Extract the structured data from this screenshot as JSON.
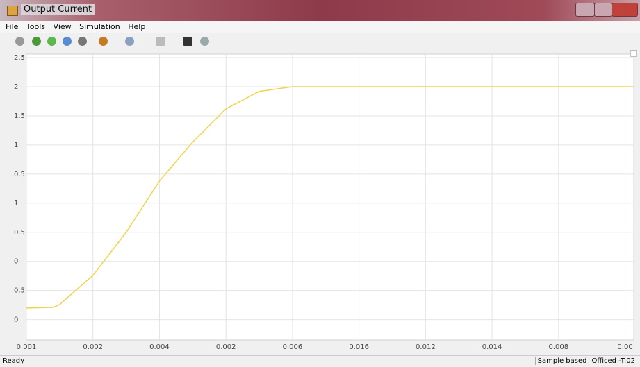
{
  "window": {
    "title": "Output Current",
    "menu": [
      "File",
      "Tools",
      "View",
      "Simulation",
      "Help"
    ],
    "status": {
      "left": "Ready",
      "right": [
        "Sample based",
        "Officed -T:02"
      ]
    }
  },
  "chart_data": {
    "type": "line",
    "x": [
      0,
      0.0004,
      0.0005,
      0.001,
      0.0015,
      0.002,
      0.0025,
      0.003,
      0.0035,
      0.004,
      0.005,
      0.006,
      0.007,
      0.008,
      0.009,
      0.00913
    ],
    "series": [
      {
        "color": "#f0d24a",
        "values": [
          -1.8,
          -1.79,
          -1.74,
          -1.24,
          -0.5,
          0.38,
          1.05,
          1.62,
          1.92,
          2.0,
          2,
          2,
          2,
          2,
          2,
          2
        ]
      }
    ],
    "xlim": [
      0,
      0.00913
    ],
    "xticks": [
      {
        "value": 0,
        "label": "0.001"
      },
      {
        "value": 0.001,
        "label": "0.002"
      },
      {
        "value": 0.002,
        "label": "0.004"
      },
      {
        "value": 0.003,
        "label": "0.002"
      },
      {
        "value": 0.004,
        "label": "0.006"
      },
      {
        "value": 0.005,
        "label": "0.016"
      },
      {
        "value": 0.006,
        "label": "0.012"
      },
      {
        "value": 0.007,
        "label": "0.014"
      },
      {
        "value": 0.008,
        "label": "0.008"
      },
      {
        "value": 0.009,
        "label": "0.00"
      }
    ],
    "ylim": [
      -2.35,
      2.56
    ],
    "yticks": [
      2.5,
      2,
      1.5,
      1,
      0.5,
      {
        "value": 0,
        "label": "1"
      },
      {
        "value": -0.5,
        "label": "0.5"
      },
      {
        "value": -1,
        "label": "0"
      },
      {
        "value": -1.5,
        "label": "0.5"
      },
      {
        "value": -2,
        "label": "0"
      }
    ],
    "grid": true
  }
}
